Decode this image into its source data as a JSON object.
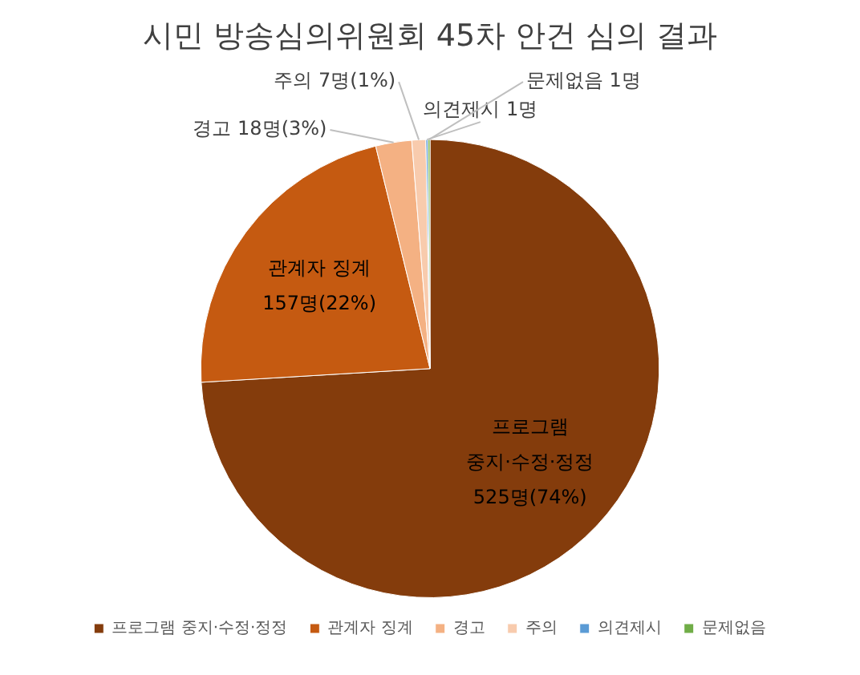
{
  "chart_data": {
    "type": "pie",
    "title": "시민 방송심의위원회 45차 안건 심의 결과",
    "categories": [
      "프로그램 중지·수정·정정",
      "관계자 징계",
      "경고",
      "주의",
      "의견제시",
      "문제없음"
    ],
    "values": [
      525,
      157,
      18,
      7,
      1,
      1
    ],
    "value_labels": [
      "525명(74%)",
      "157명(22%)",
      "18명(3%)",
      "7명(1%)",
      "1명",
      "1명"
    ],
    "colors": [
      "#843c0c",
      "#c55a11",
      "#f4b183",
      "#f8cbad",
      "#5b9bd5",
      "#70ad47"
    ],
    "legend": "bottom"
  }
}
